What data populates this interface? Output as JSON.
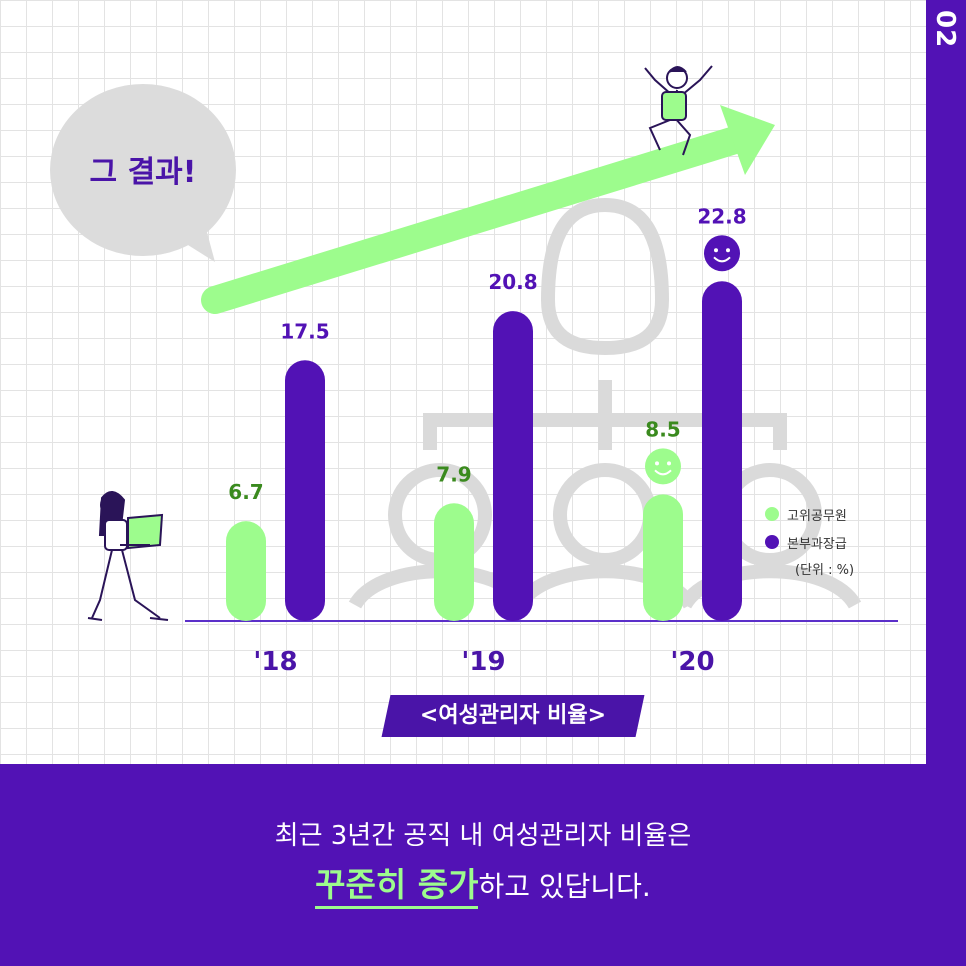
{
  "page_number": "02",
  "bubble_text": "그 결과!",
  "chart_data": {
    "type": "bar",
    "title": "<여성관리자 비율>",
    "categories": [
      "'18",
      "'19",
      "'20"
    ],
    "series": [
      {
        "name": "고위공무원",
        "values": [
          6.7,
          7.9,
          8.5
        ],
        "color": "#9dfc8d",
        "label_color": "#3a8a1e"
      },
      {
        "name": "본부과장급",
        "values": [
          17.5,
          20.8,
          22.8
        ],
        "color": "#5212b5",
        "label_color": "#5212b5"
      }
    ],
    "unit_note": "(단위 : %)",
    "ylim": [
      0,
      25
    ],
    "legend_position": "right"
  },
  "caption": {
    "line1": "최근 3년간 공직 내 여성관리자 비율은",
    "highlight": "꾸준히 증가",
    "rest": "하고 있답니다."
  },
  "colors": {
    "purple": "#5212b5",
    "green": "#9dfc8d",
    "axis": "#5b2fc9"
  },
  "icons": [
    "speech-bubble-icon",
    "trend-arrow-icon",
    "jumping-person-icon",
    "walking-woman-laptop-icon",
    "smiley-icon"
  ]
}
